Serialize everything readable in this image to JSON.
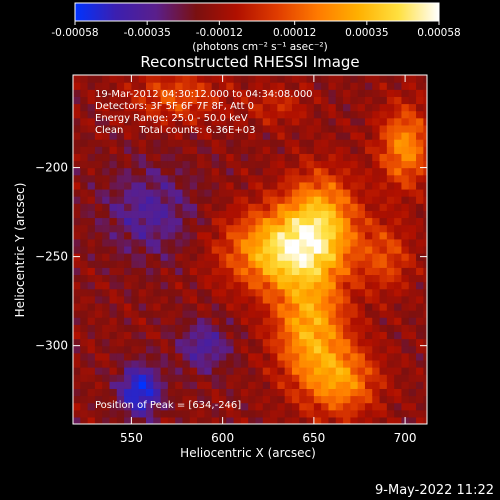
{
  "colorbar": {
    "tick_labels": [
      "-0.00058",
      "-0.00035",
      "-0.00012",
      "0.00012",
      "0.00035",
      "0.00058"
    ],
    "tick_values": [
      -0.00058,
      -0.00035,
      -0.00012,
      0.00012,
      0.00035,
      0.00058
    ],
    "range": [
      -0.00058,
      0.00058
    ],
    "units_label": "(photons cm⁻² s⁻¹ asec⁻²)",
    "colors": [
      "#0033ff",
      "#3b1fb0",
      "#5a1f8c",
      "#7a1010",
      "#b01000",
      "#e03c00",
      "#ff7a00",
      "#ffb000",
      "#ffe040",
      "#ffffff"
    ]
  },
  "chart_data": {
    "type": "heatmap",
    "title": "Reconstructed RHESSI Image",
    "xlabel": "Heliocentric X (arcsec)",
    "ylabel": "Heliocentric Y (arcsec)",
    "xlim": [
      518,
      712
    ],
    "ylim": [
      -344,
      -148
    ],
    "xticks": [
      550,
      600,
      650,
      700
    ],
    "yticks": [
      -200,
      -250,
      -300
    ],
    "xtick_labels": [
      "550",
      "600",
      "650",
      "700"
    ],
    "ytick_labels": [
      "−200",
      "−250",
      "−300"
    ],
    "annotations": [
      "19-Mar-2012 04:30:12.000 to 04:34:08.000",
      "Detectors: 3F 5F 6F 7F 8F, Att 0",
      "Energy Range: 25.0 - 50.0 keV",
      "Clean     Total counts: 6.36E+03"
    ],
    "peak_label": "Position of Peak = [634,-246]",
    "peak": {
      "x": 634,
      "y": -246
    },
    "sources": [
      {
        "x": 634,
        "y": -246,
        "amplitude": 0.00058,
        "sigma_x": 22,
        "sigma_y": 16
      },
      {
        "x": 654,
        "y": -226,
        "amplitude": 0.0004,
        "sigma_x": 14,
        "sigma_y": 18
      },
      {
        "x": 648,
        "y": -290,
        "amplitude": 0.00046,
        "sigma_x": 14,
        "sigma_y": 22
      },
      {
        "x": 666,
        "y": -320,
        "amplitude": 0.00036,
        "sigma_x": 14,
        "sigma_y": 14
      },
      {
        "x": 700,
        "y": -188,
        "amplitude": 0.0004,
        "sigma_x": 10,
        "sigma_y": 16
      },
      {
        "x": 690,
        "y": -250,
        "amplitude": 0.00022,
        "sigma_x": 10,
        "sigma_y": 14
      },
      {
        "x": 575,
        "y": -160,
        "amplitude": 0.00025,
        "sigma_x": 18,
        "sigma_y": 10
      },
      {
        "x": 630,
        "y": -165,
        "amplitude": 0.00015,
        "sigma_x": 12,
        "sigma_y": 8
      },
      {
        "x": 555,
        "y": -325,
        "amplitude": -0.0004,
        "sigma_x": 8,
        "sigma_y": 10
      },
      {
        "x": 560,
        "y": -225,
        "amplitude": -0.0002,
        "sigma_x": 18,
        "sigma_y": 18
      },
      {
        "x": 590,
        "y": -300,
        "amplitude": -0.00022,
        "sigma_x": 10,
        "sigma_y": 10
      }
    ],
    "grid_step": 4
  },
  "footer": {
    "timestamp": "9-May-2022 11:22"
  }
}
